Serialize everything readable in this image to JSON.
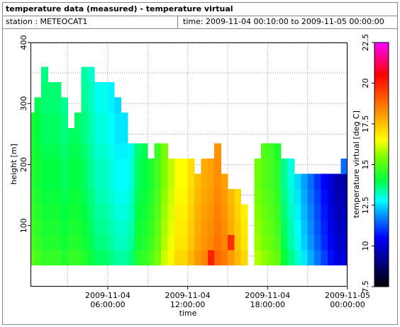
{
  "chart_data": {
    "type": "heatmap",
    "title": "temperature data (measured) - temperature virtual",
    "station": "station : METEOCAT1",
    "period": "time: 2009-11-04 00:10:00 to 2009-11-05 00:00:00",
    "xlabel": "time",
    "ylabel": "height [m]",
    "xlim": [
      0.2,
      24
    ],
    "ylim": [
      0,
      400
    ],
    "xticks": [
      {
        "value": 6,
        "label": "2009-11-04\n06:00:00"
      },
      {
        "value": 12,
        "label": "2009-11-04\n12:00:00"
      },
      {
        "value": 18,
        "label": "2009-11-04\n18:00:00"
      },
      {
        "value": 24,
        "label": "2009-11-05\n00:00:00"
      }
    ],
    "yticks": [
      100,
      200,
      300,
      400
    ],
    "xgrid": [
      3,
      6,
      9,
      12,
      15,
      18,
      21,
      24
    ],
    "ygrid": [
      50,
      100,
      150,
      200,
      250,
      300,
      350,
      400
    ],
    "grid": true,
    "colorbar": {
      "label": "temperature virtual [deg C]",
      "lim": [
        7.5,
        22.5
      ],
      "ticks": [
        7.5,
        10,
        12.5,
        15,
        17.5,
        20,
        22.5
      ]
    },
    "colormap": [
      {
        "value": 7.5,
        "color": "#000000"
      },
      {
        "value": 9,
        "color": "#00007f"
      },
      {
        "value": 10.5,
        "color": "#0000ff"
      },
      {
        "value": 12,
        "color": "#00a0ff"
      },
      {
        "value": 12.8,
        "color": "#00ffff"
      },
      {
        "value": 14,
        "color": "#00ff40"
      },
      {
        "value": 15.5,
        "color": "#80ff00"
      },
      {
        "value": 16.5,
        "color": "#ffff00"
      },
      {
        "value": 18.5,
        "color": "#ff8000"
      },
      {
        "value": 20.5,
        "color": "#ff0000"
      },
      {
        "value": 22.5,
        "color": "#ff00ff"
      }
    ],
    "x_edges": [
      0,
      0.5,
      1,
      1.5,
      2,
      2.5,
      3,
      3.5,
      4,
      4.5,
      5,
      5.5,
      6,
      6.5,
      7,
      7.5,
      8,
      8.5,
      9,
      9.5,
      10,
      10.5,
      11,
      11.5,
      12,
      12.5,
      13,
      13.5,
      14,
      14.5,
      15,
      15.5,
      16,
      16.5,
      17,
      17.5,
      18,
      18.5,
      19,
      19.5,
      20,
      20.5,
      21,
      21.5,
      22,
      22.5,
      23,
      23.5,
      24
    ],
    "y_edges": [
      35,
      60,
      85,
      110,
      135,
      160,
      185,
      210,
      235,
      260,
      285,
      310,
      335,
      360
    ],
    "z": [
      [
        15.1,
        14.8,
        14.6,
        14.6,
        14.6,
        14.4,
        14.6,
        14.6,
        14.4,
        14.1,
        13.8,
        13.8,
        13.6,
        13.4,
        13.4,
        13.6,
        14.4,
        14.6,
        14.9,
        15.4,
        16.1,
        16.6,
        17.1,
        17.1,
        17.6,
        18.1,
        18.4,
        20.0,
        18.9,
        18.6,
        18.1,
        17.6,
        17.1,
        null,
        15.9,
        15.6,
        15.4,
        15.1,
        14.1,
        13.6,
        13.1,
        12.6,
        12.1,
        11.6,
        11.1,
        10.6,
        10.1,
        10.1
      ],
      [
        14.9,
        14.6,
        14.4,
        14.4,
        14.4,
        14.2,
        14.4,
        14.4,
        14.2,
        13.9,
        13.6,
        13.6,
        13.4,
        13.2,
        13.2,
        13.4,
        14.2,
        14.4,
        14.7,
        15.2,
        15.9,
        16.4,
        16.9,
        16.9,
        17.4,
        17.9,
        18.2,
        18.4,
        18.7,
        18.4,
        19.8,
        17.4,
        16.9,
        null,
        15.7,
        15.4,
        15.2,
        14.9,
        13.9,
        13.4,
        12.9,
        12.4,
        11.9,
        11.4,
        10.9,
        10.4,
        9.9,
        9.9
      ],
      [
        14.8,
        14.5,
        14.3,
        14.3,
        14.3,
        14.1,
        14.3,
        14.3,
        14.1,
        13.8,
        13.5,
        13.5,
        13.3,
        13.1,
        13.1,
        13.3,
        14.1,
        14.3,
        14.6,
        15.1,
        15.8,
        16.3,
        16.8,
        16.8,
        17.3,
        17.8,
        18.1,
        18.3,
        18.6,
        18.3,
        17.8,
        17.3,
        16.8,
        null,
        15.6,
        15.3,
        15.1,
        14.8,
        13.8,
        13.3,
        12.8,
        12.3,
        11.8,
        11.3,
        10.8,
        10.3,
        9.8,
        9.8
      ],
      [
        14.7,
        14.4,
        14.2,
        14.2,
        14.2,
        14.0,
        14.2,
        14.2,
        14.0,
        13.7,
        13.4,
        13.4,
        13.2,
        13.0,
        13.0,
        13.2,
        14.0,
        14.2,
        14.5,
        15.0,
        15.7,
        16.2,
        16.7,
        16.7,
        17.2,
        17.7,
        18.0,
        18.2,
        18.5,
        18.2,
        17.7,
        17.2,
        16.7,
        null,
        15.5,
        15.2,
        15.0,
        14.7,
        13.7,
        13.2,
        12.7,
        12.2,
        11.7,
        11.2,
        10.7,
        10.2,
        9.7,
        9.7
      ],
      [
        14.6,
        14.3,
        14.1,
        14.1,
        14.1,
        13.9,
        14.1,
        14.1,
        13.9,
        13.6,
        13.3,
        13.3,
        13.1,
        12.9,
        12.9,
        13.1,
        13.9,
        14.1,
        14.4,
        14.9,
        15.6,
        16.1,
        16.6,
        16.6,
        17.1,
        17.6,
        17.9,
        18.1,
        18.4,
        18.1,
        17.6,
        17.1,
        null,
        null,
        15.4,
        15.1,
        14.9,
        14.6,
        13.6,
        13.1,
        12.6,
        12.1,
        11.6,
        11.1,
        10.6,
        10.1,
        9.6,
        9.6
      ],
      [
        14.5,
        14.2,
        14.0,
        14.0,
        14.0,
        13.8,
        14.0,
        14.0,
        13.8,
        13.5,
        13.2,
        13.2,
        13.0,
        12.8,
        12.8,
        13.0,
        13.8,
        14.0,
        14.3,
        14.8,
        15.5,
        16.0,
        16.5,
        16.5,
        17.0,
        17.5,
        17.8,
        18.0,
        18.3,
        18.0,
        null,
        null,
        null,
        null,
        15.3,
        15.0,
        14.8,
        14.5,
        13.5,
        13.0,
        12.5,
        12.0,
        11.5,
        11.0,
        10.5,
        10.0,
        9.5,
        9.5
      ],
      [
        14.5,
        14.2,
        14.0,
        14.0,
        14.0,
        13.8,
        14.0,
        14.0,
        13.8,
        13.5,
        13.2,
        13.2,
        13.0,
        12.8,
        12.8,
        13.0,
        13.8,
        14.0,
        14.3,
        14.8,
        15.5,
        16.0,
        16.5,
        16.5,
        17.0,
        null,
        17.8,
        18.0,
        18.3,
        null,
        null,
        null,
        null,
        null,
        15.3,
        15.0,
        14.8,
        14.5,
        13.5,
        13.0,
        null,
        null,
        null,
        null,
        null,
        null,
        null,
        11.5
      ],
      [
        14.4,
        14.1,
        13.9,
        13.9,
        13.9,
        13.7,
        13.9,
        13.9,
        13.7,
        13.4,
        13.1,
        13.1,
        12.9,
        12.7,
        12.7,
        12.9,
        13.7,
        13.9,
        null,
        14.7,
        15.4,
        null,
        null,
        null,
        null,
        null,
        null,
        null,
        18.2,
        null,
        null,
        null,
        null,
        null,
        null,
        14.9,
        14.7,
        14.4,
        null,
        null,
        null,
        null,
        null,
        null,
        null,
        null,
        null,
        null
      ],
      [
        14.3,
        14.0,
        13.8,
        13.8,
        13.8,
        13.6,
        13.8,
        13.8,
        13.6,
        13.3,
        13.0,
        13.0,
        12.8,
        12.6,
        12.6,
        null,
        null,
        null,
        null,
        null,
        null,
        null,
        null,
        null,
        null,
        null,
        null,
        null,
        null,
        null,
        null,
        null,
        null,
        null,
        null,
        null,
        null,
        null,
        null,
        null,
        null,
        null,
        null,
        null,
        null,
        null,
        null,
        null
      ],
      [
        14.3,
        14.0,
        13.8,
        13.8,
        13.8,
        13.6,
        null,
        13.8,
        13.6,
        13.3,
        13.0,
        13.0,
        12.8,
        12.6,
        12.6,
        null,
        null,
        null,
        null,
        null,
        null,
        null,
        null,
        null,
        null,
        null,
        null,
        null,
        null,
        null,
        null,
        null,
        null,
        null,
        null,
        null,
        null,
        null,
        null,
        null,
        null,
        null,
        null,
        null,
        null,
        null,
        null,
        null
      ],
      [
        null,
        13.9,
        13.7,
        13.7,
        13.7,
        13.5,
        null,
        null,
        13.5,
        13.2,
        12.9,
        12.9,
        12.7,
        12.5,
        null,
        null,
        null,
        null,
        null,
        null,
        null,
        null,
        null,
        null,
        null,
        null,
        null,
        null,
        null,
        null,
        null,
        null,
        null,
        null,
        null,
        null,
        null,
        null,
        null,
        null,
        null,
        null,
        null,
        null,
        null,
        null,
        null,
        null
      ],
      [
        null,
        null,
        13.7,
        13.7,
        13.7,
        null,
        null,
        null,
        13.5,
        13.2,
        12.9,
        12.9,
        12.7,
        null,
        null,
        null,
        null,
        null,
        null,
        null,
        null,
        null,
        null,
        null,
        null,
        null,
        null,
        null,
        null,
        null,
        null,
        null,
        null,
        null,
        null,
        null,
        null,
        null,
        null,
        null,
        null,
        null,
        null,
        null,
        null,
        null,
        null,
        null
      ],
      [
        null,
        null,
        13.6,
        null,
        null,
        null,
        null,
        null,
        13.4,
        13.1,
        null,
        null,
        null,
        null,
        null,
        null,
        null,
        null,
        null,
        null,
        null,
        null,
        null,
        null,
        null,
        null,
        null,
        null,
        null,
        null,
        null,
        null,
        null,
        null,
        null,
        null,
        null,
        null,
        null,
        null,
        null,
        null,
        null,
        null,
        null,
        null,
        null,
        null
      ]
    ]
  }
}
